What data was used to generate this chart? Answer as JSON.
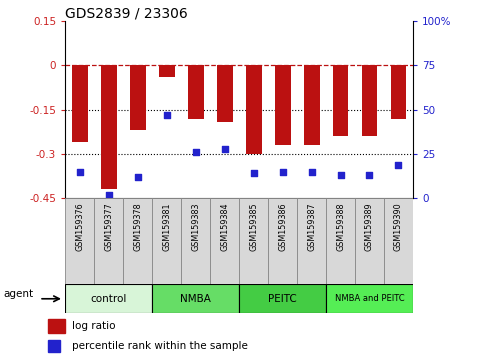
{
  "title": "GDS2839 / 23306",
  "samples": [
    "GSM159376",
    "GSM159377",
    "GSM159378",
    "GSM159381",
    "GSM159383",
    "GSM159384",
    "GSM159385",
    "GSM159386",
    "GSM159387",
    "GSM159388",
    "GSM159389",
    "GSM159390"
  ],
  "log_ratios": [
    -0.26,
    -0.42,
    -0.22,
    -0.04,
    -0.18,
    -0.19,
    -0.3,
    -0.27,
    -0.27,
    -0.24,
    -0.24,
    -0.18
  ],
  "percentile_ranks": [
    15,
    2,
    12,
    47,
    26,
    28,
    14,
    15,
    15,
    13,
    13,
    19
  ],
  "bar_color": "#bb1111",
  "dot_color": "#2222cc",
  "ylim_left": [
    -0.45,
    0.15
  ],
  "ylim_right": [
    0,
    100
  ],
  "yticks_left": [
    -0.45,
    -0.3,
    -0.15,
    0.0,
    0.15
  ],
  "yticks_right": [
    0,
    25,
    50,
    75,
    100
  ],
  "ytick_labels_left": [
    "-0.45",
    "-0.3",
    "-0.15",
    "0",
    "0.15"
  ],
  "ytick_labels_right": [
    "0",
    "25",
    "50",
    "75",
    "100%"
  ],
  "hline_y": 0.0,
  "dotted_hlines": [
    -0.15,
    -0.3
  ],
  "groups": [
    {
      "label": "control",
      "start": 0,
      "end": 3,
      "color": "#d8f5d8"
    },
    {
      "label": "NMBA",
      "start": 3,
      "end": 6,
      "color": "#66dd66"
    },
    {
      "label": "PEITC",
      "start": 6,
      "end": 9,
      "color": "#44cc44"
    },
    {
      "label": "NMBA and PEITC",
      "start": 9,
      "end": 12,
      "color": "#55ee55"
    }
  ],
  "legend_log_ratio_label": "log ratio",
  "legend_percentile_label": "percentile rank within the sample",
  "agent_label": "agent",
  "background_color": "#ffffff",
  "plot_bg_color": "#ffffff",
  "tick_label_color_left": "#cc2222",
  "tick_label_color_right": "#2222cc",
  "bar_width": 0.55,
  "sample_box_color": "#d8d8d8",
  "sample_box_edge_color": "#888888"
}
